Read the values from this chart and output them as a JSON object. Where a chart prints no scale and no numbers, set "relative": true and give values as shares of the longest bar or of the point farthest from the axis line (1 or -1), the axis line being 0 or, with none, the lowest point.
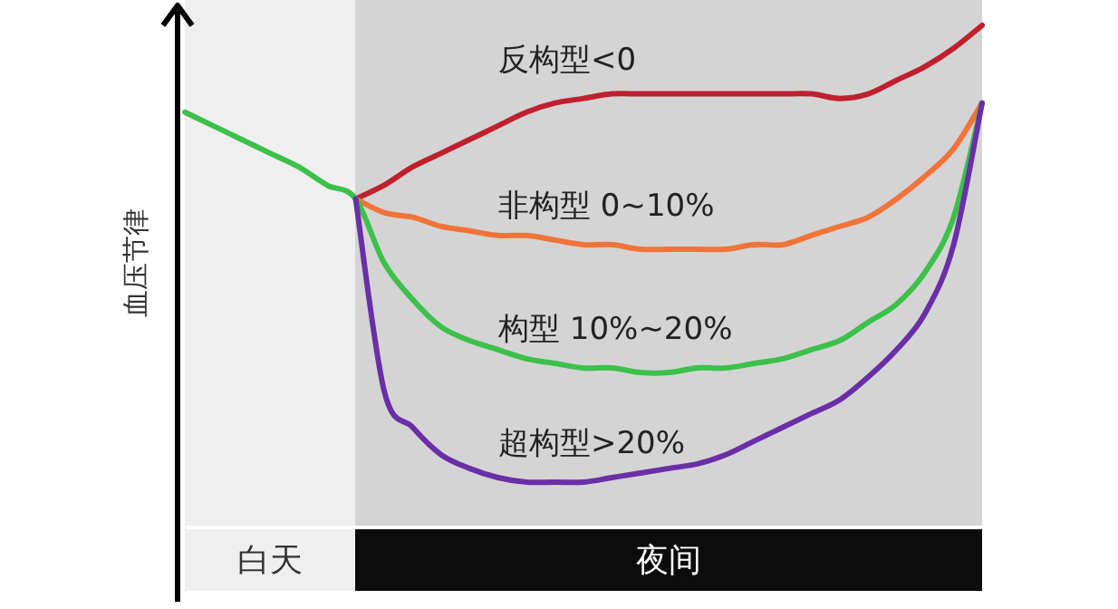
{
  "chart_data": {
    "type": "line",
    "relative": true,
    "ylabel": "血压节律",
    "marker": "none",
    "line_style": "solid",
    "annotations": [
      "白天",
      "夜间"
    ],
    "categories": [
      null,
      null,
      null,
      null,
      null,
      null,
      null,
      null,
      null,
      null,
      null,
      null,
      null,
      null,
      null,
      null,
      null,
      null,
      null,
      null,
      null,
      null,
      null,
      null,
      null,
      null,
      null,
      null,
      null
    ],
    "series": [
      {
        "name": "反构型<0",
        "color": "#c0202e",
        "values": [
          null,
          null,
          null,
          null,
          null,
          null,
          0.62,
          0.65,
          0.69,
          0.72,
          0.75,
          0.78,
          0.81,
          0.83,
          0.84,
          0.85,
          0.85,
          0.85,
          0.85,
          0.85,
          0.85,
          0.85,
          0.85,
          0.84,
          0.85,
          0.88,
          0.91,
          0.95,
          1
        ]
      },
      {
        "name": "非构型 0~10%",
        "color": "#f0743a",
        "values": [
          null,
          null,
          null,
          null,
          null,
          null,
          0.62,
          0.59,
          0.58,
          0.56,
          0.55,
          0.54,
          0.54,
          0.53,
          0.52,
          0.52,
          0.51,
          0.51,
          0.51,
          0.51,
          0.52,
          0.52,
          0.54,
          0.56,
          0.58,
          0.62,
          0.67,
          0.73,
          0.83
        ]
      },
      {
        "name": "构型 10%~20%",
        "color": "#3cc04a",
        "values": [
          0.81,
          0.78,
          0.75,
          0.72,
          0.69,
          0.65,
          0.62,
          0.48,
          0.4,
          0.34,
          0.31,
          0.29,
          0.27,
          0.26,
          0.25,
          0.25,
          0.24,
          0.24,
          0.25,
          0.25,
          0.26,
          0.27,
          0.29,
          0.31,
          0.35,
          0.39,
          0.46,
          0.58,
          0.83
        ]
      },
      {
        "name": "超构型>20%",
        "color": "#6a2fa6",
        "values": [
          null,
          null,
          null,
          null,
          null,
          null,
          0.62,
          0.2,
          0.12,
          0.06,
          0.03,
          0.01,
          0,
          0,
          0,
          0.01,
          0.02,
          0.03,
          0.04,
          0.06,
          0.09,
          0.12,
          0.15,
          0.18,
          0.23,
          0.29,
          0.37,
          0.52,
          0.83
        ]
      }
    ]
  }
}
